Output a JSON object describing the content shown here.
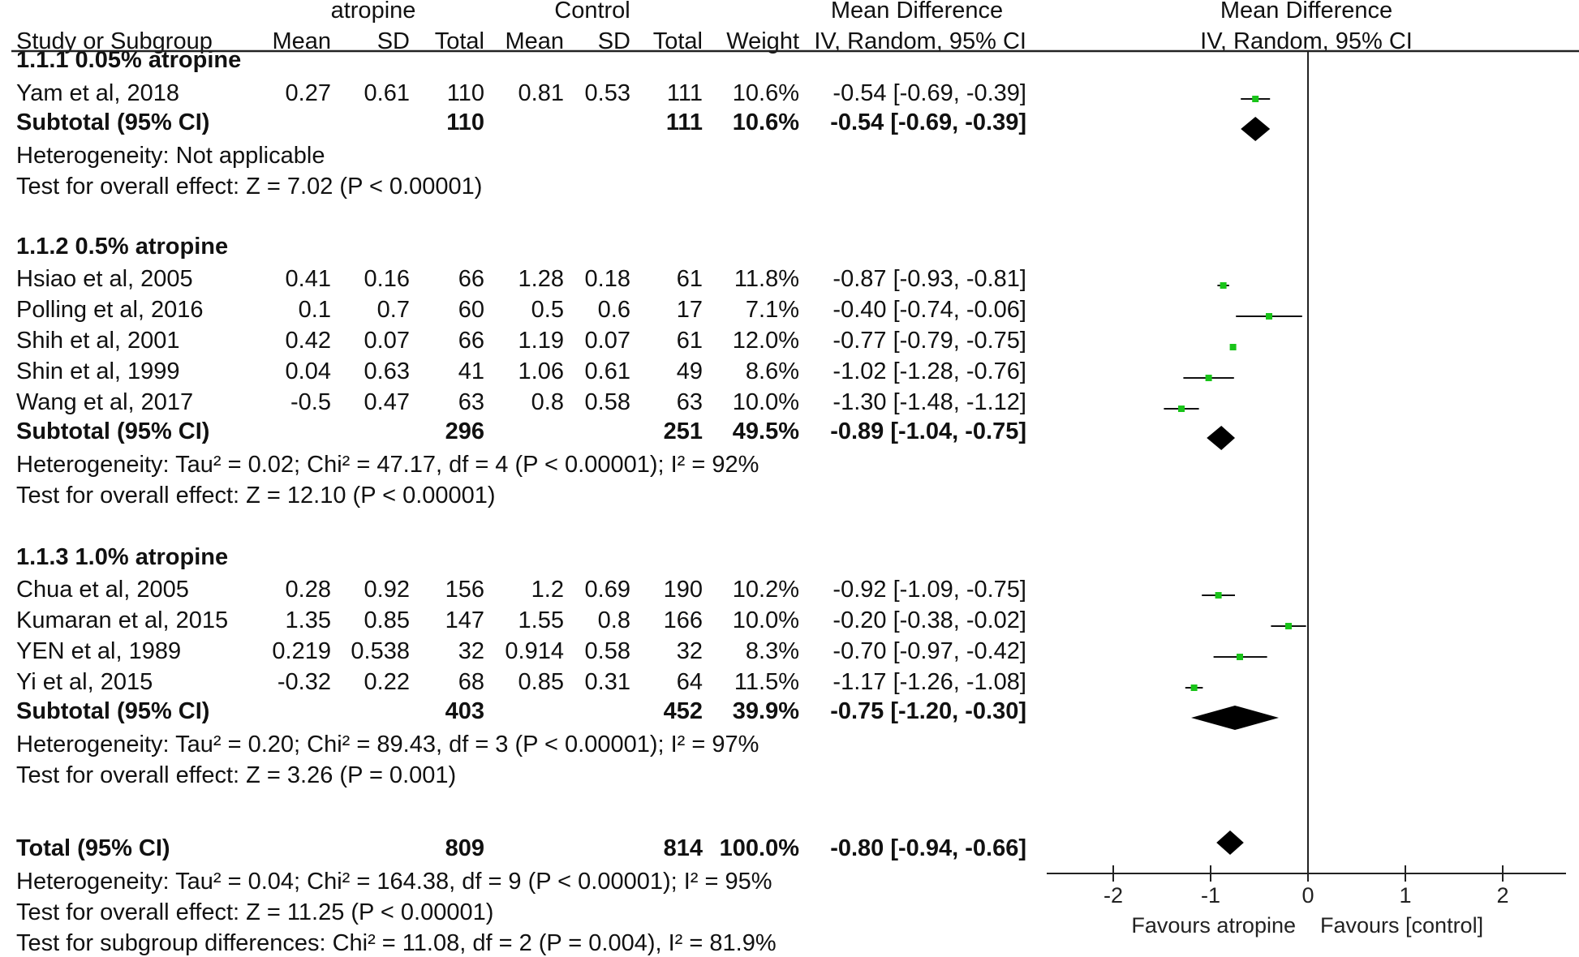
{
  "header": {
    "group1": "atropine",
    "group2": "Control",
    "effect_title": "Mean Difference",
    "plot_title": "Mean Difference",
    "col_study": "Study or Subgroup",
    "col_mean1": "Mean",
    "col_sd1": "SD",
    "col_total1": "Total",
    "col_mean2": "Mean",
    "col_sd2": "SD",
    "col_total2": "Total",
    "col_weight": "Weight",
    "col_ci": "IV, Random, 95% CI",
    "plot_method": "IV, Random, 95% CI"
  },
  "subgroups": [
    {
      "title": "1.1.1 0.05% atropine",
      "studies": [
        {
          "name": "Yam et al, 2018",
          "mean1": "0.27",
          "sd1": "0.61",
          "total1": "110",
          "mean2": "0.81",
          "sd2": "0.53",
          "total2": "111",
          "weight": "10.6%",
          "ci": "-0.54 [-0.69, -0.39]"
        }
      ],
      "subtotal": {
        "label": "Subtotal (95% CI)",
        "total1": "110",
        "total2": "111",
        "weight": "10.6%",
        "ci": "-0.54 [-0.69, -0.39]"
      },
      "heterogeneity": "Heterogeneity: Not applicable",
      "overall": "Test for overall effect: Z = 7.02 (P < 0.00001)"
    },
    {
      "title": "1.1.2 0.5% atropine",
      "studies": [
        {
          "name": "Hsiao et al, 2005",
          "mean1": "0.41",
          "sd1": "0.16",
          "total1": "66",
          "mean2": "1.28",
          "sd2": "0.18",
          "total2": "61",
          "weight": "11.8%",
          "ci": "-0.87 [-0.93, -0.81]"
        },
        {
          "name": "Polling et al, 2016",
          "mean1": "0.1",
          "sd1": "0.7",
          "total1": "60",
          "mean2": "0.5",
          "sd2": "0.6",
          "total2": "17",
          "weight": "7.1%",
          "ci": "-0.40 [-0.74, -0.06]"
        },
        {
          "name": "Shih et al, 2001",
          "mean1": "0.42",
          "sd1": "0.07",
          "total1": "66",
          "mean2": "1.19",
          "sd2": "0.07",
          "total2": "61",
          "weight": "12.0%",
          "ci": "-0.77 [-0.79, -0.75]"
        },
        {
          "name": "Shin et al, 1999",
          "mean1": "0.04",
          "sd1": "0.63",
          "total1": "41",
          "mean2": "1.06",
          "sd2": "0.61",
          "total2": "49",
          "weight": "8.6%",
          "ci": "-1.02 [-1.28, -0.76]"
        },
        {
          "name": "Wang et al, 2017",
          "mean1": "-0.5",
          "sd1": "0.47",
          "total1": "63",
          "mean2": "0.8",
          "sd2": "0.58",
          "total2": "63",
          "weight": "10.0%",
          "ci": "-1.30 [-1.48, -1.12]"
        }
      ],
      "subtotal": {
        "label": "Subtotal (95% CI)",
        "total1": "296",
        "total2": "251",
        "weight": "49.5%",
        "ci": "-0.89 [-1.04, -0.75]"
      },
      "heterogeneity": "Heterogeneity: Tau² = 0.02; Chi² = 47.17, df = 4 (P < 0.00001); I² = 92%",
      "overall": "Test for overall effect: Z = 12.10 (P < 0.00001)"
    },
    {
      "title": "1.1.3 1.0% atropine",
      "studies": [
        {
          "name": "Chua et al, 2005",
          "mean1": "0.28",
          "sd1": "0.92",
          "total1": "156",
          "mean2": "1.2",
          "sd2": "0.69",
          "total2": "190",
          "weight": "10.2%",
          "ci": "-0.92 [-1.09, -0.75]"
        },
        {
          "name": "Kumaran et al, 2015",
          "mean1": "1.35",
          "sd1": "0.85",
          "total1": "147",
          "mean2": "1.55",
          "sd2": "0.8",
          "total2": "166",
          "weight": "10.0%",
          "ci": "-0.20 [-0.38, -0.02]"
        },
        {
          "name": "YEN et al, 1989",
          "mean1": "0.219",
          "sd1": "0.538",
          "total1": "32",
          "mean2": "0.914",
          "sd2": "0.58",
          "total2": "32",
          "weight": "8.3%",
          "ci": "-0.70 [-0.97, -0.42]"
        },
        {
          "name": "Yi et al, 2015",
          "mean1": "-0.32",
          "sd1": "0.22",
          "total1": "68",
          "mean2": "0.85",
          "sd2": "0.31",
          "total2": "64",
          "weight": "11.5%",
          "ci": "-1.17 [-1.26, -1.08]"
        }
      ],
      "subtotal": {
        "label": "Subtotal (95% CI)",
        "total1": "403",
        "total2": "452",
        "weight": "39.9%",
        "ci": "-0.75 [-1.20, -0.30]"
      },
      "heterogeneity": "Heterogeneity: Tau² = 0.20; Chi² = 89.43, df = 3 (P < 0.00001); I² = 97%",
      "overall": "Test for overall effect: Z = 3.26 (P = 0.001)"
    }
  ],
  "total": {
    "label": "Total (95% CI)",
    "total1": "809",
    "total2": "814",
    "weight": "100.0%",
    "ci": "-0.80 [-0.94, -0.66]",
    "heterogeneity": "Heterogeneity: Tau² = 0.04; Chi² = 164.38, df = 9 (P < 0.00001); I² = 95%",
    "overall": "Test for overall effect: Z = 11.25 (P < 0.00001)",
    "subgroup_diff": "Test for subgroup differences: Chi² = 11.08, df = 2 (P = 0.004), I² = 81.9%"
  },
  "chart_data": {
    "type": "forest",
    "xlim": [
      -2,
      2
    ],
    "ticks": [
      -2,
      -1,
      0,
      1,
      2
    ],
    "tick_labels": [
      "-2",
      "-1",
      "0",
      "1",
      "2"
    ],
    "favours_left": "Favours atropine",
    "favours_right": "Favours [control]",
    "marker_color": "#19c419",
    "studies": [
      {
        "name": "Yam et al, 2018",
        "md": -0.54,
        "lo": -0.69,
        "hi": -0.39
      },
      {
        "name": "Hsiao et al, 2005",
        "md": -0.87,
        "lo": -0.93,
        "hi": -0.81
      },
      {
        "name": "Polling et al, 2016",
        "md": -0.4,
        "lo": -0.74,
        "hi": -0.06
      },
      {
        "name": "Shih et al, 2001",
        "md": -0.77,
        "lo": -0.79,
        "hi": -0.75
      },
      {
        "name": "Shin et al, 1999",
        "md": -1.02,
        "lo": -1.28,
        "hi": -0.76
      },
      {
        "name": "Wang et al, 2017",
        "md": -1.3,
        "lo": -1.48,
        "hi": -1.12
      },
      {
        "name": "Chua et al, 2005",
        "md": -0.92,
        "lo": -1.09,
        "hi": -0.75
      },
      {
        "name": "Kumaran et al, 2015",
        "md": -0.2,
        "lo": -0.38,
        "hi": -0.02
      },
      {
        "name": "YEN et al, 1989",
        "md": -0.7,
        "lo": -0.97,
        "hi": -0.42
      },
      {
        "name": "Yi et al, 2015",
        "md": -1.17,
        "lo": -1.26,
        "hi": -1.08
      }
    ],
    "diamonds": [
      {
        "name": "Subtotal 1.1.1",
        "md": -0.54,
        "lo": -0.69,
        "hi": -0.39
      },
      {
        "name": "Subtotal 1.1.2",
        "md": -0.89,
        "lo": -1.04,
        "hi": -0.75
      },
      {
        "name": "Subtotal 1.1.3",
        "md": -0.75,
        "lo": -1.2,
        "hi": -0.3
      },
      {
        "name": "Total",
        "md": -0.8,
        "lo": -0.94,
        "hi": -0.66
      }
    ]
  }
}
